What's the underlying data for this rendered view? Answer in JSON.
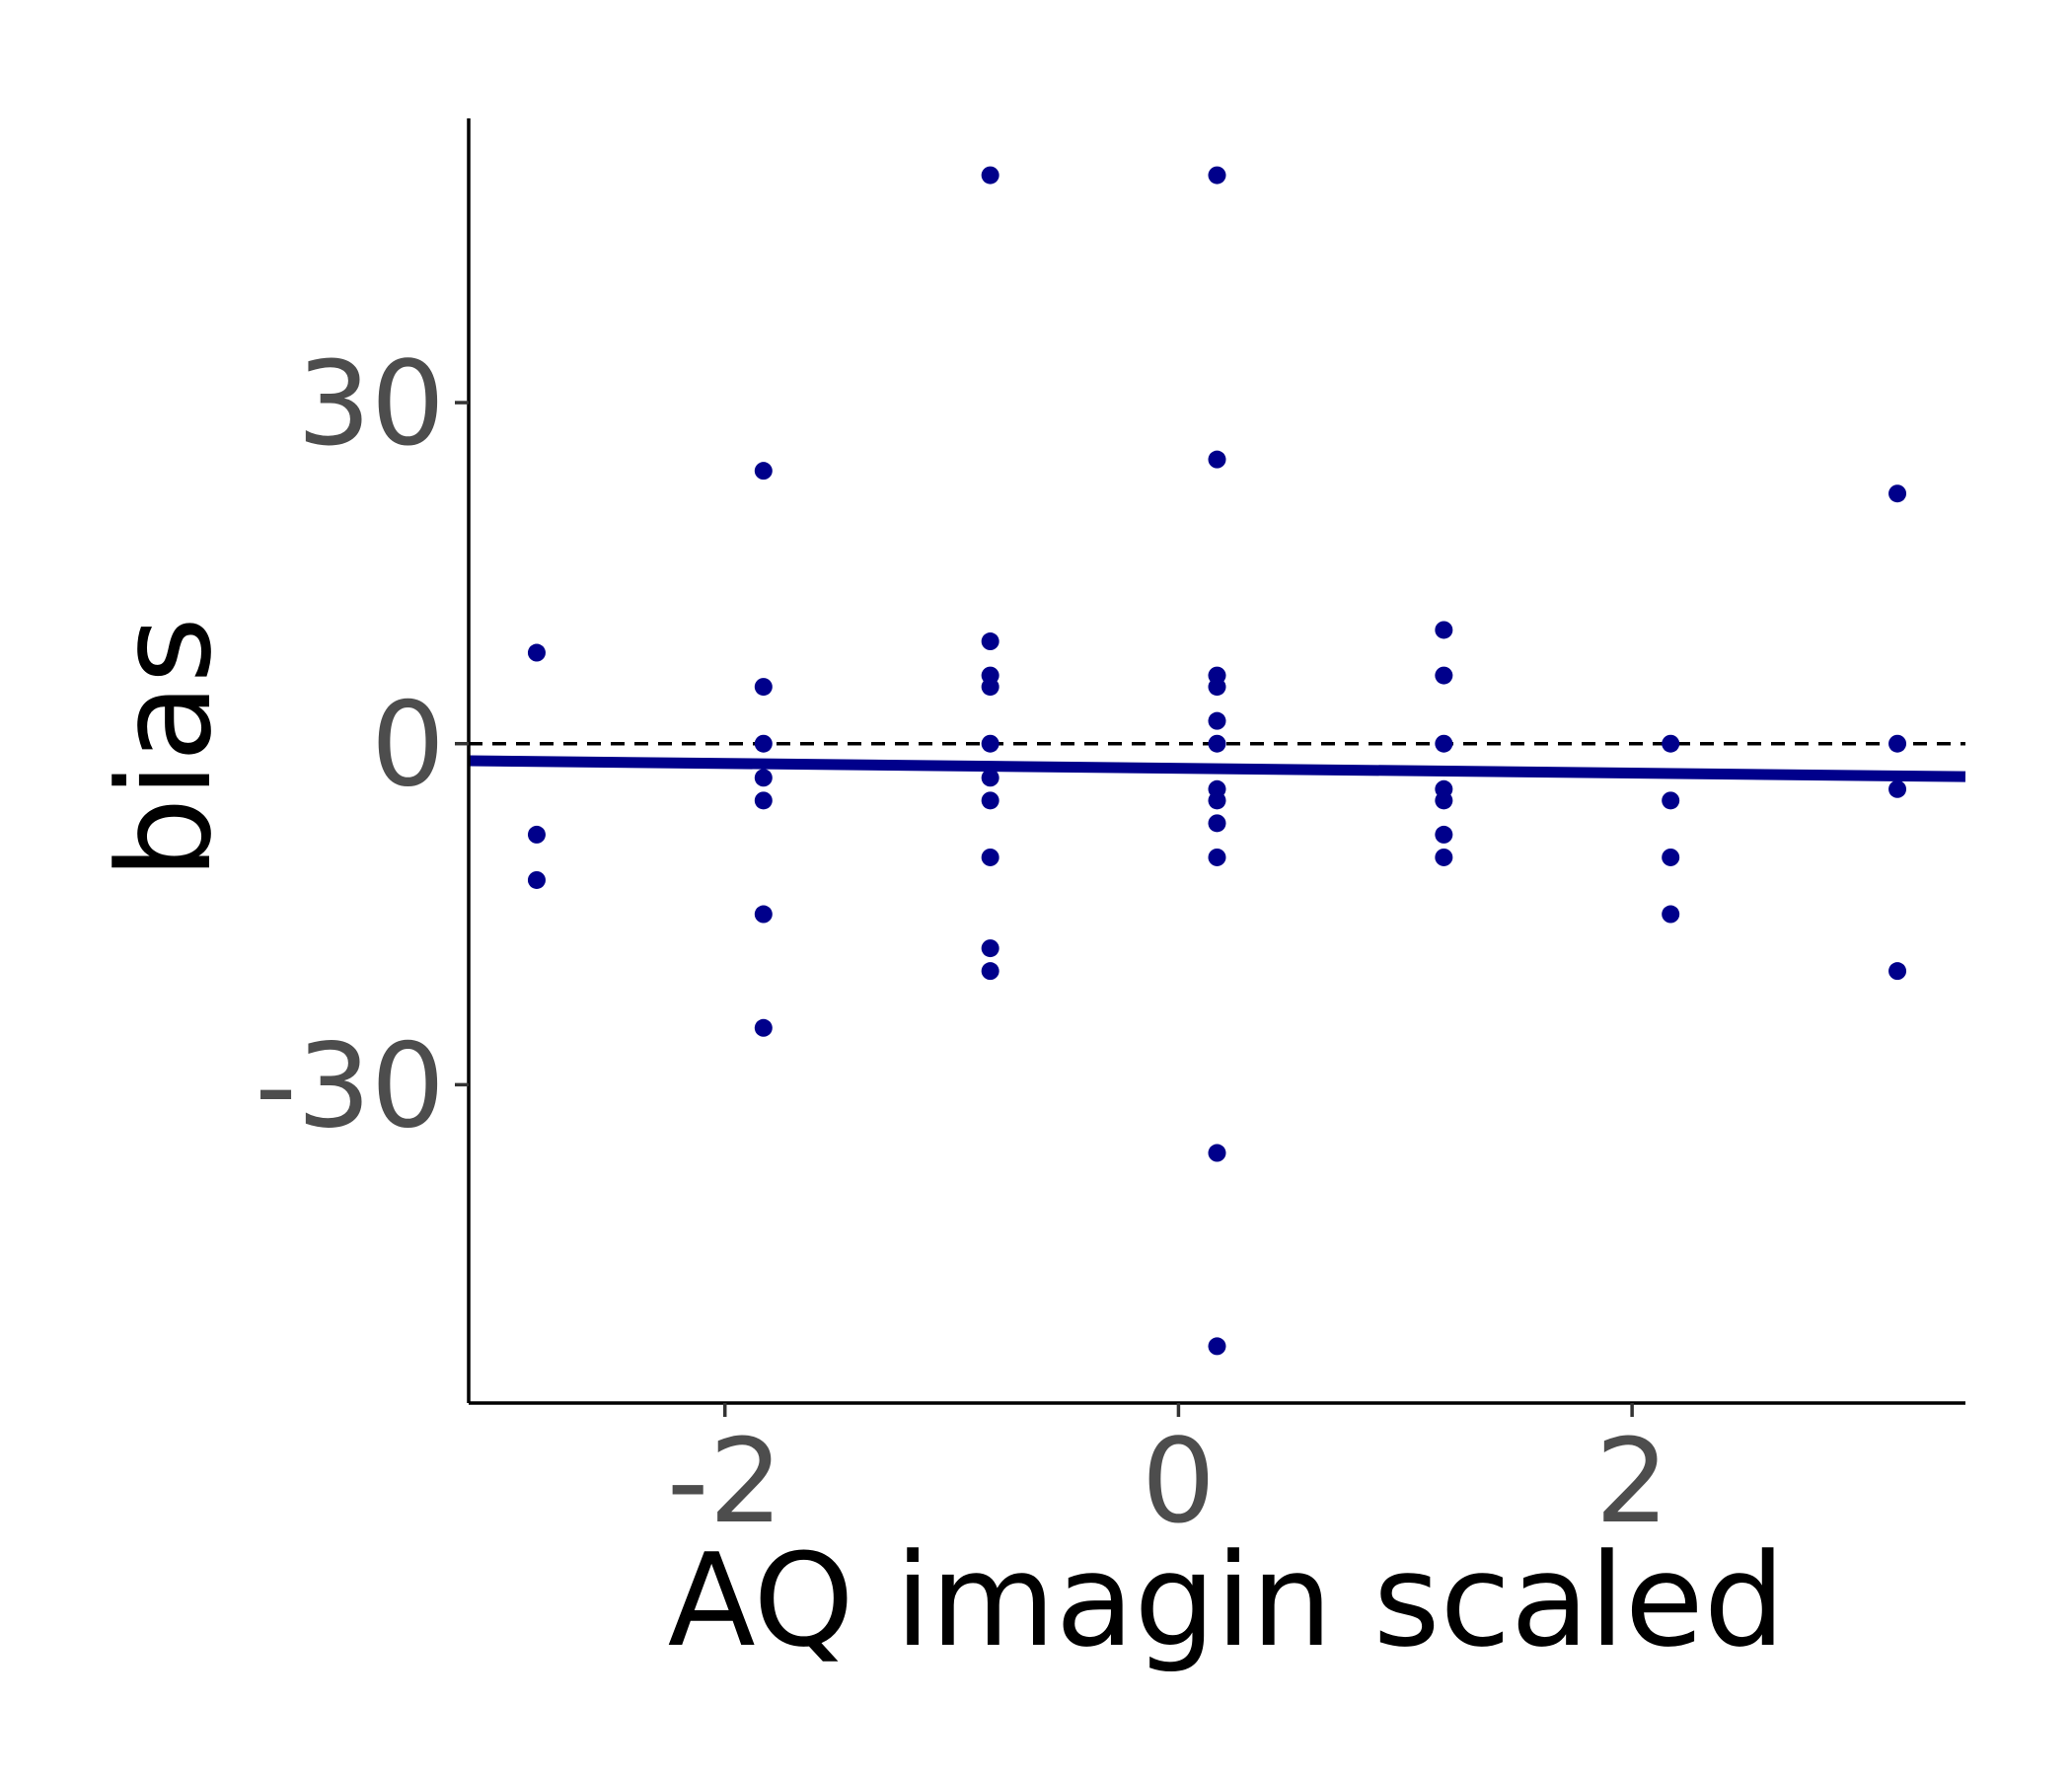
{
  "chart_data": {
    "type": "scatter",
    "xlabel": "AQ imagin scaled",
    "ylabel": "bias",
    "xlim": [
      -3.13,
      3.47
    ],
    "ylim": [
      -58,
      55
    ],
    "x_ticks": [
      {
        "value": -2,
        "label": "-2"
      },
      {
        "value": 0,
        "label": "0"
      },
      {
        "value": 2,
        "label": "2"
      }
    ],
    "y_ticks": [
      {
        "value": -30,
        "label": "-30"
      },
      {
        "value": 0,
        "label": "0"
      },
      {
        "value": 30,
        "label": "30"
      }
    ],
    "reference_line": {
      "y": 0,
      "style": "dashed",
      "color": "#000000"
    },
    "trend_line": {
      "x": [
        -3.13,
        3.47
      ],
      "y": [
        -1.5,
        -2.9
      ],
      "color": "#00008B"
    },
    "point_color": "#00008B",
    "grid": false,
    "points": [
      {
        "x": -2.83,
        "y": 8
      },
      {
        "x": -2.83,
        "y": -8
      },
      {
        "x": -2.83,
        "y": -12
      },
      {
        "x": -1.83,
        "y": 24
      },
      {
        "x": -1.83,
        "y": 5
      },
      {
        "x": -1.83,
        "y": 0
      },
      {
        "x": -1.83,
        "y": -3
      },
      {
        "x": -1.83,
        "y": -5
      },
      {
        "x": -1.83,
        "y": -15
      },
      {
        "x": -1.83,
        "y": -25
      },
      {
        "x": -0.83,
        "y": 50
      },
      {
        "x": -0.83,
        "y": 9
      },
      {
        "x": -0.83,
        "y": 6
      },
      {
        "x": -0.83,
        "y": 5
      },
      {
        "x": -0.83,
        "y": 0
      },
      {
        "x": -0.83,
        "y": -3
      },
      {
        "x": -0.83,
        "y": -5
      },
      {
        "x": -0.83,
        "y": -10
      },
      {
        "x": -0.83,
        "y": -18
      },
      {
        "x": -0.83,
        "y": -20
      },
      {
        "x": 0.17,
        "y": 50
      },
      {
        "x": 0.17,
        "y": 25
      },
      {
        "x": 0.17,
        "y": 6
      },
      {
        "x": 0.17,
        "y": 5
      },
      {
        "x": 0.17,
        "y": 2
      },
      {
        "x": 0.17,
        "y": 0
      },
      {
        "x": 0.17,
        "y": -4
      },
      {
        "x": 0.17,
        "y": -5
      },
      {
        "x": 0.17,
        "y": -7
      },
      {
        "x": 0.17,
        "y": -10
      },
      {
        "x": 0.17,
        "y": -36
      },
      {
        "x": 0.17,
        "y": -53
      },
      {
        "x": 1.17,
        "y": 10
      },
      {
        "x": 1.17,
        "y": 6
      },
      {
        "x": 1.17,
        "y": 0
      },
      {
        "x": 1.17,
        "y": -4
      },
      {
        "x": 1.17,
        "y": -5
      },
      {
        "x": 1.17,
        "y": -8
      },
      {
        "x": 1.17,
        "y": -10
      },
      {
        "x": 2.17,
        "y": 0
      },
      {
        "x": 2.17,
        "y": -5
      },
      {
        "x": 2.17,
        "y": -10
      },
      {
        "x": 2.17,
        "y": -15
      },
      {
        "x": 3.17,
        "y": 22
      },
      {
        "x": 3.17,
        "y": 0
      },
      {
        "x": 3.17,
        "y": -4
      },
      {
        "x": 3.17,
        "y": -20
      }
    ]
  }
}
